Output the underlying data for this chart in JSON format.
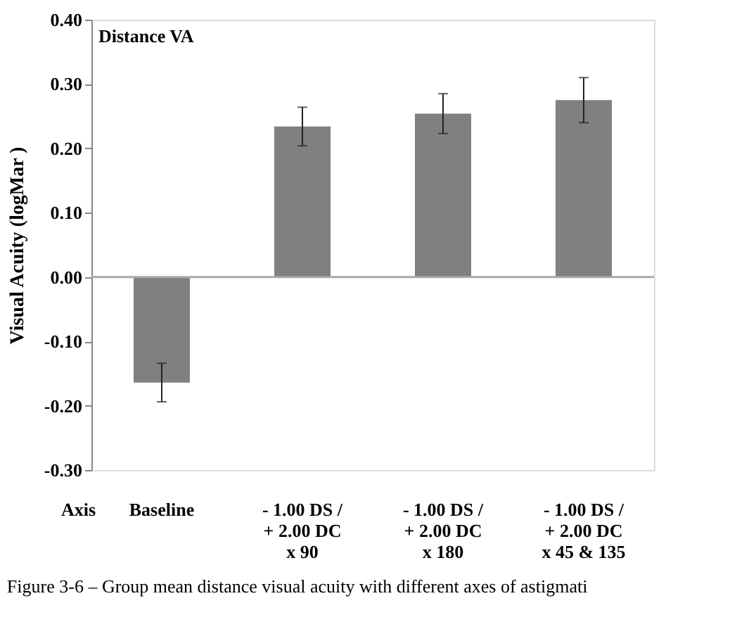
{
  "chart_data": {
    "type": "bar",
    "title": "Distance VA",
    "ylabel": "Visual Acuity (logMar )",
    "xlabel": "Axis",
    "categories": [
      "Baseline",
      "- 1.00 DS /\n+ 2.00 DC\nx 90",
      "- 1.00 DS /\n+ 2.00 DC\nx 180",
      "- 1.00 DS /\n+ 2.00 DC\nx 45 & 135"
    ],
    "values": [
      -0.164,
      0.234,
      0.254,
      0.275
    ],
    "errors": [
      0.03,
      0.03,
      0.031,
      0.035
    ],
    "color": "#808080",
    "ylim": [
      -0.3,
      0.4
    ],
    "yticks": [
      {
        "value": -0.3,
        "label": "-0.30"
      },
      {
        "value": -0.2,
        "label": "-0.20"
      },
      {
        "value": -0.1,
        "label": "-0.10"
      },
      {
        "value": 0,
        "label": "0.00"
      },
      {
        "value": 0.1,
        "label": "0.10"
      },
      {
        "value": 0.2,
        "label": "0.20"
      },
      {
        "value": 0.3,
        "label": "0.30"
      },
      {
        "value": 0.4,
        "label": "0.40"
      }
    ],
    "ref_lines": [
      {
        "axis": "y",
        "value": 0,
        "color": "#aaaaaa",
        "line_style": "solid"
      }
    ],
    "annotations": [
      "Figure 3-6 – Group mean distance visual acuity with different axes of astigmati"
    ]
  }
}
